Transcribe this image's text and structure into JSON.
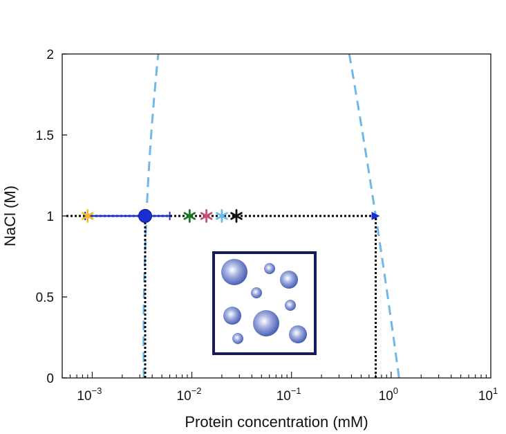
{
  "chart_data": {
    "type": "scatter",
    "xlabel": "Protein concentration (mM)",
    "ylabel": "NaCl (M)",
    "x_scale": "log",
    "xlim": [
      0.0005,
      10
    ],
    "ylim": [
      0,
      2
    ],
    "x_ticks": [
      {
        "value": 0.001,
        "base": "10",
        "exp": "−3"
      },
      {
        "value": 0.01,
        "base": "10",
        "exp": "−2"
      },
      {
        "value": 0.1,
        "base": "10",
        "exp": "−1"
      },
      {
        "value": 1,
        "base": "10",
        "exp": "0"
      },
      {
        "value": 10,
        "base": "10",
        "exp": "1"
      }
    ],
    "y_ticks": [
      {
        "value": 0,
        "label": "0"
      },
      {
        "value": 0.5,
        "label": "0.5"
      },
      {
        "value": 1,
        "label": "1"
      },
      {
        "value": 1.5,
        "label": "1.5"
      },
      {
        "value": 2,
        "label": "2"
      }
    ],
    "grid": false,
    "series": [
      {
        "kind": "phase-boundary-left",
        "style": "dashed",
        "color": "#6cb8e8",
        "points": [
          [
            0.0033,
            0
          ],
          [
            0.0035,
            1
          ],
          [
            0.0046,
            2
          ]
        ]
      },
      {
        "kind": "phase-boundary-right",
        "style": "dashed",
        "color": "#6cb8e8",
        "points": [
          [
            1.2,
            0
          ],
          [
            0.7,
            1
          ],
          [
            0.38,
            2
          ]
        ]
      },
      {
        "kind": "tie-line",
        "style": "dotted",
        "color": "#000000",
        "points": [
          [
            0.00055,
            1
          ],
          [
            0.7,
            1
          ]
        ]
      },
      {
        "kind": "drop-line-left",
        "style": "dotted",
        "color": "#000000",
        "points": [
          [
            0.0034,
            0
          ],
          [
            0.0034,
            1
          ]
        ]
      },
      {
        "kind": "drop-line-right",
        "style": "dotted",
        "color": "#000000",
        "points": [
          [
            0.7,
            0
          ],
          [
            0.7,
            1
          ]
        ]
      }
    ],
    "dilute_point": {
      "x": 0.0034,
      "y": 1,
      "xerr_low": 0.00085,
      "xerr_high": 0.006,
      "color": "#1a2fd0"
    },
    "dense_point": {
      "x": 0.7,
      "y": 1,
      "color": "#1a2fd0"
    },
    "star_markers": [
      {
        "x": 0.0009,
        "y": 1,
        "color": "#f5b82e"
      },
      {
        "x": 0.0095,
        "y": 1,
        "color": "#1b7a2a"
      },
      {
        "x": 0.014,
        "y": 1,
        "color": "#c94f7c"
      },
      {
        "x": 0.02,
        "y": 1,
        "color": "#6cb8e8"
      },
      {
        "x": 0.028,
        "y": 1,
        "color": "#111111"
      }
    ],
    "inset": {
      "description_icon": "droplets-icon",
      "border_color": "#141a5c",
      "droplet_color": "#3f56b0"
    }
  }
}
